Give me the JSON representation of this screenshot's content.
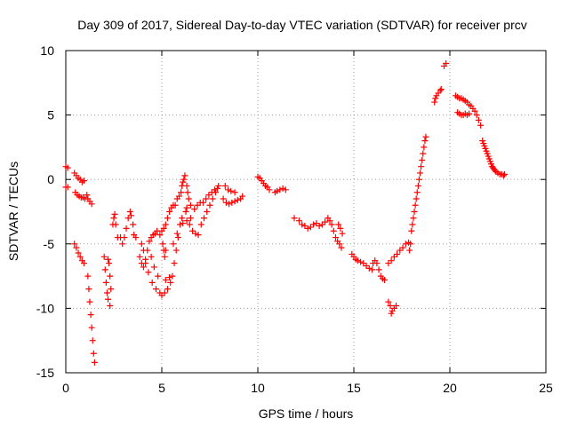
{
  "chart_data": {
    "type": "scatter",
    "title": "Day 309 of 2017, Sidereal Day-to-day VTEC variation (SDTVAR) for receiver prcv",
    "xlabel": "GPS time / hours",
    "ylabel": "SDTVAR / TECUs",
    "xlim": [
      0,
      25
    ],
    "ylim": [
      -15,
      10
    ],
    "grid": true,
    "x_ticks": [
      0,
      5,
      10,
      15,
      20,
      25
    ],
    "y_ticks": [
      -15,
      -10,
      -5,
      0,
      5,
      10
    ],
    "x_tick_labels": [
      "0",
      "5",
      "10",
      "15",
      "20",
      "25"
    ],
    "y_tick_labels": [
      "-15",
      "-10",
      "-5",
      "0",
      "5",
      "10"
    ],
    "marker": "+",
    "color": "#ff0000",
    "series": [
      {
        "name": "SDTVAR",
        "points": [
          [
            0.0,
            1.0
          ],
          [
            0.1,
            0.9
          ],
          [
            0.0,
            -0.6
          ],
          [
            0.1,
            -0.6
          ],
          [
            0.45,
            0.5
          ],
          [
            0.55,
            0.3
          ],
          [
            0.65,
            0.1
          ],
          [
            0.75,
            0.0
          ],
          [
            0.85,
            -0.2
          ],
          [
            0.95,
            -0.1
          ],
          [
            0.5,
            -1.0
          ],
          [
            0.6,
            -1.2
          ],
          [
            0.7,
            -1.3
          ],
          [
            0.8,
            -1.4
          ],
          [
            0.9,
            -1.4
          ],
          [
            1.0,
            -1.5
          ],
          [
            1.1,
            -1.2
          ],
          [
            1.15,
            -1.5
          ],
          [
            1.25,
            -1.7
          ],
          [
            1.35,
            -1.9
          ],
          [
            0.45,
            -5.0
          ],
          [
            0.55,
            -5.3
          ],
          [
            0.65,
            -5.7
          ],
          [
            0.75,
            -6.0
          ],
          [
            0.85,
            -6.3
          ],
          [
            0.95,
            -6.5
          ],
          [
            1.15,
            -7.5
          ],
          [
            1.2,
            -8.5
          ],
          [
            1.25,
            -9.5
          ],
          [
            1.3,
            -10.5
          ],
          [
            1.35,
            -11.5
          ],
          [
            1.4,
            -12.5
          ],
          [
            1.45,
            -13.5
          ],
          [
            1.5,
            -14.2
          ],
          [
            2.0,
            -6.0
          ],
          [
            2.05,
            -7.0
          ],
          [
            2.1,
            -8.0
          ],
          [
            2.15,
            -8.8
          ],
          [
            2.2,
            -9.3
          ],
          [
            2.3,
            -9.8
          ],
          [
            2.35,
            -8.5
          ],
          [
            2.3,
            -7.5
          ],
          [
            2.25,
            -6.5
          ],
          [
            2.2,
            -6.2
          ],
          [
            2.45,
            -3.5
          ],
          [
            2.5,
            -3.0
          ],
          [
            2.55,
            -2.7
          ],
          [
            2.6,
            -3.5
          ],
          [
            2.7,
            -4.5
          ],
          [
            2.85,
            -4.5
          ],
          [
            2.95,
            -5.0
          ],
          [
            3.05,
            -4.5
          ],
          [
            3.15,
            -3.8
          ],
          [
            3.25,
            -3.0
          ],
          [
            3.35,
            -2.5
          ],
          [
            3.4,
            -2.8
          ],
          [
            3.5,
            -3.5
          ],
          [
            3.55,
            -4.3
          ],
          [
            3.65,
            -4.5
          ],
          [
            3.85,
            -6.0
          ],
          [
            3.95,
            -6.5
          ],
          [
            4.05,
            -6.8
          ],
          [
            4.15,
            -6.5
          ],
          [
            4.25,
            -5.5
          ],
          [
            4.35,
            -4.8
          ],
          [
            4.45,
            -4.5
          ],
          [
            4.55,
            -4.3
          ],
          [
            4.65,
            -4.2
          ],
          [
            4.75,
            -4.0
          ],
          [
            4.15,
            -6.2
          ],
          [
            4.3,
            -7.2
          ],
          [
            4.5,
            -8.0
          ],
          [
            4.7,
            -8.5
          ],
          [
            4.9,
            -8.8
          ],
          [
            5.0,
            -9.0
          ],
          [
            5.15,
            -8.8
          ],
          [
            5.3,
            -8.5
          ],
          [
            5.45,
            -8.0
          ],
          [
            5.55,
            -7.5
          ],
          [
            5.65,
            -6.5
          ],
          [
            5.75,
            -5.5
          ],
          [
            5.85,
            -4.5
          ],
          [
            5.95,
            -3.5
          ],
          [
            6.05,
            -3.0
          ],
          [
            3.95,
            -5.0
          ],
          [
            4.05,
            -5.5
          ],
          [
            4.45,
            -6.0
          ],
          [
            4.6,
            -6.8
          ],
          [
            4.8,
            -7.5
          ],
          [
            5.2,
            -7.8
          ],
          [
            5.4,
            -7.6
          ],
          [
            5.6,
            -5.0
          ],
          [
            5.8,
            -4.2
          ],
          [
            6.1,
            -3.4
          ],
          [
            6.3,
            -3.2
          ],
          [
            6.5,
            -3.0
          ],
          [
            4.9,
            -4.3
          ],
          [
            5.0,
            -4.0
          ],
          [
            5.1,
            -3.8
          ],
          [
            5.2,
            -3.5
          ],
          [
            5.3,
            -3.0
          ],
          [
            5.4,
            -2.5
          ],
          [
            5.5,
            -2.2
          ],
          [
            5.6,
            -2.0
          ],
          [
            5.7,
            -2.0
          ],
          [
            5.8,
            -1.5
          ],
          [
            5.9,
            -1.3
          ],
          [
            6.0,
            -1.0
          ],
          [
            5.05,
            -5.0
          ],
          [
            5.1,
            -5.5
          ],
          [
            5.15,
            -6.0
          ],
          [
            5.2,
            -5.5
          ],
          [
            6.05,
            -0.5
          ],
          [
            6.1,
            -0.2
          ],
          [
            6.15,
            0.0
          ],
          [
            6.2,
            0.3
          ],
          [
            6.3,
            -0.5
          ],
          [
            6.35,
            -1.0
          ],
          [
            6.4,
            -1.5
          ],
          [
            6.3,
            -2.2
          ],
          [
            6.25,
            -2.5
          ],
          [
            6.45,
            -3.5
          ],
          [
            6.6,
            -4.0
          ],
          [
            6.75,
            -4.2
          ],
          [
            6.9,
            -4.3
          ],
          [
            7.05,
            -3.5
          ],
          [
            7.2,
            -3.0
          ],
          [
            7.35,
            -2.5
          ],
          [
            7.5,
            -2.0
          ],
          [
            7.65,
            -1.5
          ],
          [
            7.8,
            -1.0
          ],
          [
            7.9,
            -0.7
          ],
          [
            6.5,
            -2.0
          ],
          [
            6.7,
            -2.3
          ],
          [
            6.85,
            -2.0
          ],
          [
            7.0,
            -1.8
          ],
          [
            7.15,
            -1.8
          ],
          [
            7.3,
            -1.5
          ],
          [
            7.45,
            -1.2
          ],
          [
            7.6,
            -1.0
          ],
          [
            7.75,
            -0.8
          ],
          [
            7.95,
            -0.5
          ],
          [
            8.2,
            -1.5
          ],
          [
            8.35,
            -1.8
          ],
          [
            8.5,
            -1.9
          ],
          [
            8.65,
            -1.8
          ],
          [
            8.8,
            -1.7
          ],
          [
            8.95,
            -1.6
          ],
          [
            9.1,
            -1.5
          ],
          [
            9.2,
            -1.3
          ],
          [
            8.3,
            -0.5
          ],
          [
            8.45,
            -0.8
          ],
          [
            8.6,
            -0.9
          ],
          [
            8.8,
            -1.0
          ],
          [
            10.0,
            0.2
          ],
          [
            10.1,
            0.1
          ],
          [
            10.2,
            -0.1
          ],
          [
            10.3,
            -0.3
          ],
          [
            10.4,
            -0.5
          ],
          [
            10.5,
            -0.6
          ],
          [
            10.6,
            -0.8
          ],
          [
            10.9,
            -1.0
          ],
          [
            11.0,
            -0.9
          ],
          [
            11.15,
            -0.8
          ],
          [
            11.3,
            -0.7
          ],
          [
            11.45,
            -0.8
          ],
          [
            11.9,
            -3.0
          ],
          [
            12.15,
            -3.2
          ],
          [
            12.3,
            -3.5
          ],
          [
            12.45,
            -3.6
          ],
          [
            12.6,
            -3.8
          ],
          [
            12.75,
            -3.7
          ],
          [
            12.9,
            -3.5
          ],
          [
            13.05,
            -3.4
          ],
          [
            13.2,
            -3.6
          ],
          [
            13.35,
            -3.5
          ],
          [
            13.5,
            -3.3
          ],
          [
            13.65,
            -3.0
          ],
          [
            13.75,
            -3.2
          ],
          [
            13.85,
            -3.5
          ],
          [
            13.95,
            -4.0
          ],
          [
            14.05,
            -4.5
          ],
          [
            14.15,
            -4.8
          ],
          [
            14.25,
            -5.0
          ],
          [
            14.35,
            -5.3
          ],
          [
            14.2,
            -3.5
          ],
          [
            14.3,
            -3.8
          ],
          [
            14.4,
            -4.2
          ],
          [
            14.9,
            -5.8
          ],
          [
            15.0,
            -6.0
          ],
          [
            15.1,
            -6.2
          ],
          [
            15.2,
            -6.3
          ],
          [
            15.35,
            -6.4
          ],
          [
            15.5,
            -6.5
          ],
          [
            15.65,
            -6.7
          ],
          [
            15.8,
            -6.9
          ],
          [
            15.95,
            -7.0
          ],
          [
            16.0,
            -6.5
          ],
          [
            16.1,
            -6.3
          ],
          [
            16.2,
            -6.5
          ],
          [
            16.3,
            -7.0
          ],
          [
            16.4,
            -7.5
          ],
          [
            16.5,
            -7.7
          ],
          [
            16.6,
            -7.8
          ],
          [
            16.8,
            -9.5
          ],
          [
            16.9,
            -9.8
          ],
          [
            17.0,
            -10.2
          ],
          [
            17.1,
            -10.0
          ],
          [
            17.2,
            -9.8
          ],
          [
            16.95,
            -10.4
          ],
          [
            16.8,
            -6.5
          ],
          [
            16.95,
            -6.3
          ],
          [
            17.1,
            -6.0
          ],
          [
            17.25,
            -5.8
          ],
          [
            17.4,
            -5.5
          ],
          [
            17.55,
            -5.3
          ],
          [
            17.7,
            -5.0
          ],
          [
            17.85,
            -4.9
          ],
          [
            17.9,
            -5.5
          ],
          [
            17.95,
            -5.0
          ],
          [
            18.0,
            -4.0
          ],
          [
            18.05,
            -3.5
          ],
          [
            18.1,
            -3.0
          ],
          [
            18.15,
            -2.5
          ],
          [
            18.2,
            -2.0
          ],
          [
            18.25,
            -1.5
          ],
          [
            18.3,
            -1.0
          ],
          [
            18.35,
            -0.5
          ],
          [
            18.4,
            0.0
          ],
          [
            18.45,
            0.5
          ],
          [
            18.5,
            1.0
          ],
          [
            18.55,
            1.5
          ],
          [
            18.6,
            2.0
          ],
          [
            18.65,
            2.5
          ],
          [
            18.7,
            3.0
          ],
          [
            18.75,
            3.3
          ],
          [
            19.2,
            6.0
          ],
          [
            19.25,
            6.3
          ],
          [
            19.3,
            6.5
          ],
          [
            19.4,
            6.7
          ],
          [
            19.5,
            6.9
          ],
          [
            19.55,
            7.0
          ],
          [
            19.7,
            8.8
          ],
          [
            19.8,
            9.0
          ],
          [
            20.3,
            6.5
          ],
          [
            20.4,
            6.4
          ],
          [
            20.5,
            6.3
          ],
          [
            20.6,
            6.3
          ],
          [
            20.7,
            6.2
          ],
          [
            20.8,
            6.1
          ],
          [
            20.9,
            6.0
          ],
          [
            20.4,
            5.2
          ],
          [
            20.5,
            5.1
          ],
          [
            20.6,
            5.0
          ],
          [
            20.7,
            5.0
          ],
          [
            20.8,
            5.1
          ],
          [
            20.9,
            5.0
          ],
          [
            21.0,
            5.1
          ],
          [
            21.0,
            5.8
          ],
          [
            21.1,
            5.7
          ],
          [
            21.2,
            5.5
          ],
          [
            21.3,
            5.3
          ],
          [
            21.4,
            5.0
          ],
          [
            21.5,
            4.6
          ],
          [
            21.6,
            4.2
          ],
          [
            21.7,
            3.0
          ],
          [
            21.75,
            2.8
          ],
          [
            21.8,
            2.6
          ],
          [
            21.85,
            2.4
          ],
          [
            21.9,
            2.2
          ],
          [
            21.95,
            2.0
          ],
          [
            22.0,
            1.8
          ],
          [
            22.05,
            1.6
          ],
          [
            22.1,
            1.4
          ],
          [
            22.15,
            1.2
          ],
          [
            22.2,
            1.0
          ],
          [
            22.25,
            0.9
          ],
          [
            22.3,
            0.8
          ],
          [
            22.35,
            0.7
          ],
          [
            22.4,
            0.6
          ],
          [
            22.5,
            0.5
          ],
          [
            22.6,
            0.4
          ],
          [
            22.7,
            0.4
          ],
          [
            22.8,
            0.3
          ],
          [
            22.85,
            0.4
          ]
        ]
      }
    ]
  }
}
